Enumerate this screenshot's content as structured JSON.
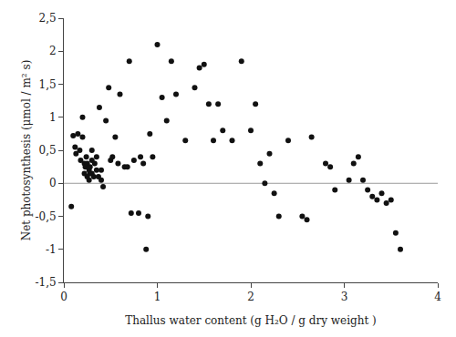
{
  "chart_data": {
    "type": "scatter",
    "x": [
      0.08,
      0.1,
      0.12,
      0.13,
      0.15,
      0.17,
      0.18,
      0.2,
      0.2,
      0.22,
      0.22,
      0.23,
      0.24,
      0.25,
      0.25,
      0.27,
      0.27,
      0.28,
      0.28,
      0.3,
      0.3,
      0.3,
      0.32,
      0.33,
      0.35,
      0.35,
      0.37,
      0.38,
      0.4,
      0.4,
      0.42,
      0.45,
      0.48,
      0.5,
      0.52,
      0.55,
      0.58,
      0.6,
      0.65,
      0.68,
      0.7,
      0.72,
      0.75,
      0.8,
      0.82,
      0.85,
      0.88,
      0.9,
      0.92,
      0.95,
      1.0,
      1.05,
      1.1,
      1.15,
      1.2,
      1.3,
      1.4,
      1.45,
      1.5,
      1.55,
      1.6,
      1.65,
      1.7,
      1.8,
      1.9,
      2.0,
      2.05,
      2.1,
      2.15,
      2.2,
      2.25,
      2.3,
      2.4,
      2.55,
      2.6,
      2.65,
      2.8,
      2.85,
      2.9,
      3.05,
      3.1,
      3.15,
      3.2,
      3.25,
      3.3,
      3.35,
      3.4,
      3.45,
      3.5,
      3.55,
      3.6
    ],
    "values": [
      -0.35,
      0.72,
      0.55,
      0.45,
      0.75,
      0.5,
      0.35,
      1.0,
      0.7,
      0.15,
      0.3,
      0.25,
      0.4,
      0.3,
      0.1,
      0.2,
      0.05,
      0.25,
      0.15,
      0.5,
      0.35,
      0.15,
      0.1,
      0.3,
      0.4,
      0.2,
      0.1,
      1.15,
      0.2,
      0.05,
      -0.05,
      0.95,
      1.45,
      0.35,
      0.4,
      0.7,
      0.3,
      1.35,
      0.25,
      0.25,
      1.85,
      -0.45,
      0.35,
      -0.45,
      0.4,
      0.3,
      -1.0,
      -0.5,
      0.75,
      0.4,
      2.1,
      1.3,
      0.95,
      1.85,
      1.35,
      0.65,
      1.45,
      1.75,
      1.8,
      1.2,
      0.65,
      1.2,
      0.8,
      0.65,
      1.85,
      0.8,
      1.2,
      0.3,
      0.0,
      0.45,
      -0.15,
      -0.5,
      0.65,
      -0.5,
      -0.55,
      0.7,
      0.3,
      0.25,
      -0.1,
      0.05,
      0.3,
      0.4,
      0.05,
      -0.1,
      -0.2,
      -0.25,
      -0.15,
      -0.3,
      -0.25,
      -0.75,
      -1.0
    ],
    "color": "#111111",
    "xlabel": "Thallus water content (g H₂O / g dry weight )",
    "ylabel": "Net photosynthesis (μmol / m² s)",
    "xlim": [
      0,
      4.0
    ],
    "ylim": [
      -1.5,
      2.5
    ],
    "xticks": [
      0,
      1,
      2,
      3,
      4
    ],
    "yticks": [
      {
        "value": -1.5,
        "label": "-1,5"
      },
      -1,
      {
        "value": -0.5,
        "label": "-0,5"
      },
      0,
      {
        "value": 0.5,
        "label": "0,5"
      },
      1,
      {
        "value": 1.5,
        "label": "1,5"
      },
      2,
      {
        "value": 2.5,
        "label": "2,5"
      }
    ],
    "hline": {
      "y": 0.0,
      "color": "#999999"
    },
    "grid": false
  }
}
